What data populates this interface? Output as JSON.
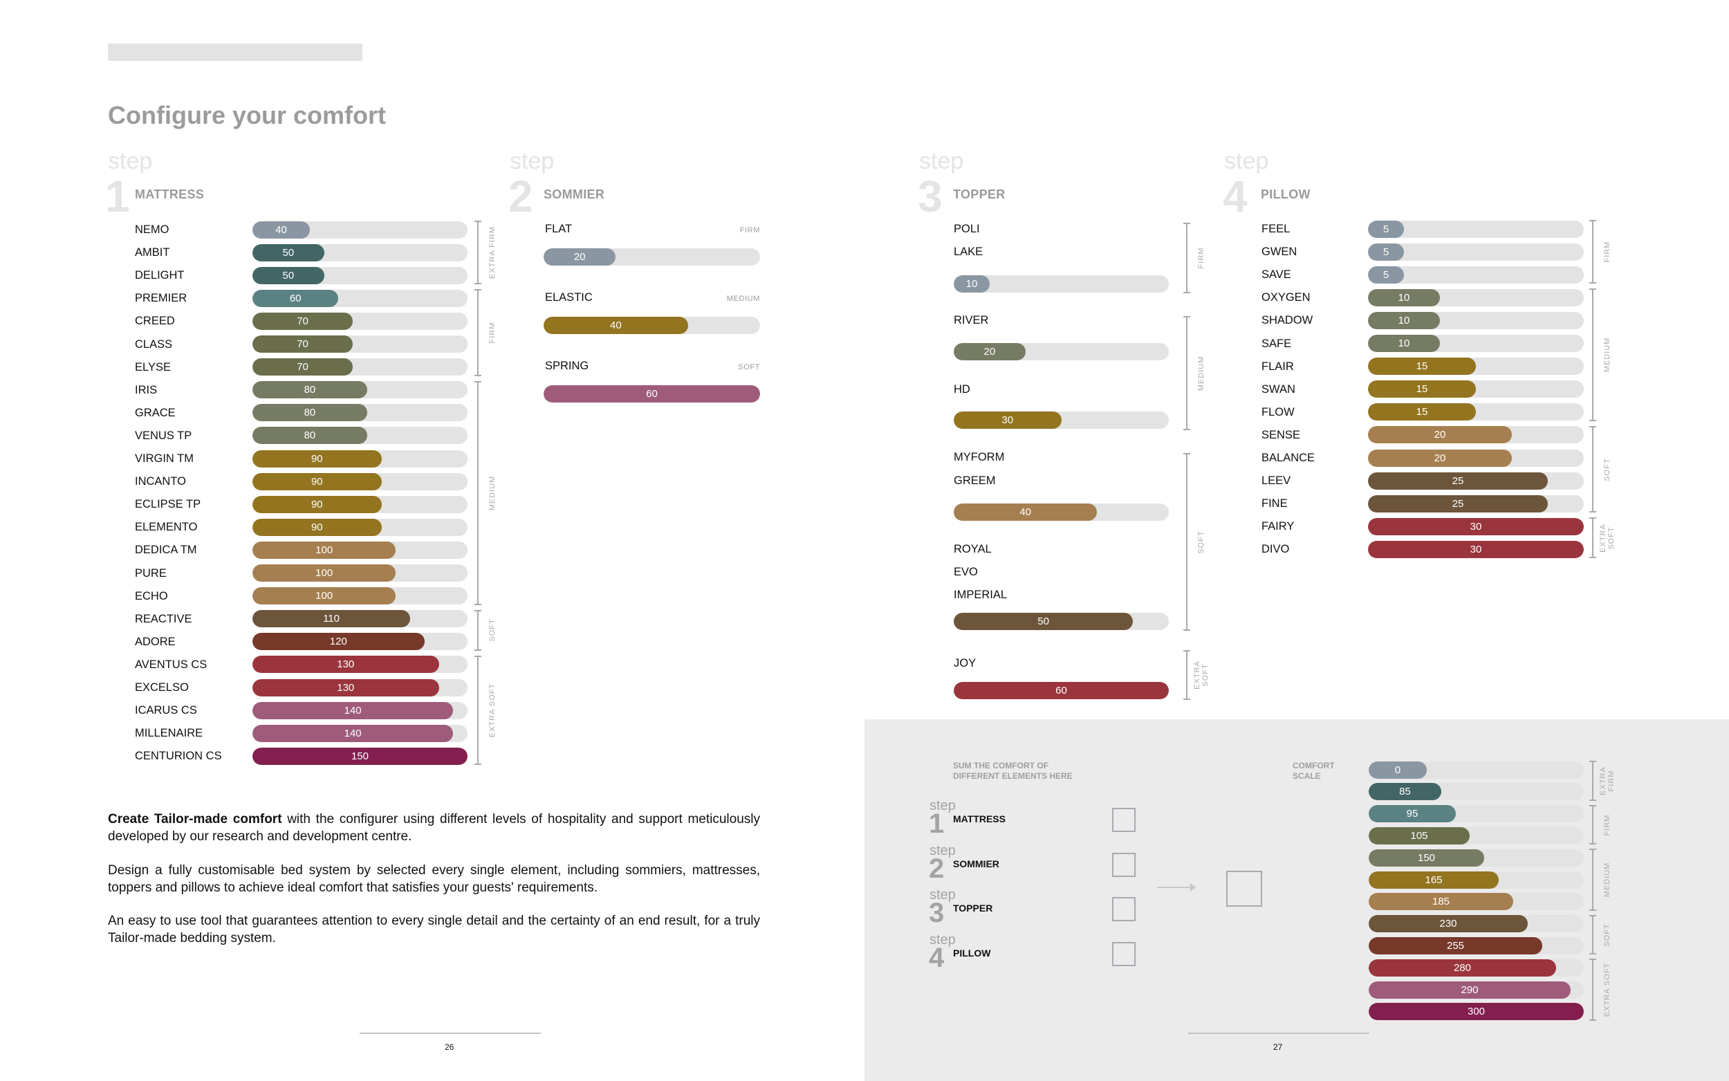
{
  "page": {
    "title": "Configure your comfort",
    "step_word": "step"
  },
  "colors": {
    "c_grey": "#8a96a1",
    "c_teal_dark": "#436566",
    "c_teal": "#5b8283",
    "c_olive_dark": "#6a6e4b",
    "c_olive": "#767c64",
    "c_mustard": "#93741f",
    "c_tan": "#a67f50",
    "c_brown": "#6c553b",
    "c_rust": "#77392a",
    "c_red": "#9b353d",
    "c_mauve": "#9e5c7a",
    "c_plum": "#821f4f",
    "track": "#e3e3e3",
    "panel": "#ebebeb"
  },
  "mattress": {
    "number": "1",
    "label": "MATTRESS",
    "max": 150,
    "rows": [
      {
        "name": "NEMO",
        "value": 40,
        "color": "#8a96a1"
      },
      {
        "name": "AMBIT",
        "value": 50,
        "color": "#436566"
      },
      {
        "name": "DELIGHT",
        "value": 50,
        "color": "#436566"
      },
      {
        "name": "PREMIER",
        "value": 60,
        "color": "#5b8283"
      },
      {
        "name": "CREED",
        "value": 70,
        "color": "#6a6e4b"
      },
      {
        "name": "CLASS",
        "value": 70,
        "color": "#6a6e4b"
      },
      {
        "name": "ELYSE",
        "value": 70,
        "color": "#6a6e4b"
      },
      {
        "name": "IRIS",
        "value": 80,
        "color": "#767c64"
      },
      {
        "name": "GRACE",
        "value": 80,
        "color": "#767c64"
      },
      {
        "name": "VENUS TP",
        "value": 80,
        "color": "#767c64"
      },
      {
        "name": "VIRGIN TM",
        "value": 90,
        "color": "#93741f"
      },
      {
        "name": "INCANTO",
        "value": 90,
        "color": "#93741f"
      },
      {
        "name": "ECLIPSE TP",
        "value": 90,
        "color": "#93741f"
      },
      {
        "name": "ELEMENTO",
        "value": 90,
        "color": "#93741f"
      },
      {
        "name": "DEDICA TM",
        "value": 100,
        "color": "#a67f50"
      },
      {
        "name": "PURE",
        "value": 100,
        "color": "#a67f50"
      },
      {
        "name": "ECHO",
        "value": 100,
        "color": "#a67f50"
      },
      {
        "name": "REACTIVE",
        "value": 110,
        "color": "#6c553b"
      },
      {
        "name": "ADORE",
        "value": 120,
        "color": "#77392a"
      },
      {
        "name": "AVENTUS CS",
        "value": 130,
        "color": "#9b353d"
      },
      {
        "name": "EXCELSO",
        "value": 130,
        "color": "#9b353d"
      },
      {
        "name": "ICARUS CS",
        "value": 140,
        "color": "#9e5c7a"
      },
      {
        "name": "MILLENAIRE",
        "value": 140,
        "color": "#9e5c7a"
      },
      {
        "name": "CENTURION CS",
        "value": 150,
        "color": "#821f4f"
      }
    ],
    "groups": [
      {
        "label": "EXTRA FIRM",
        "from": 0,
        "to": 2
      },
      {
        "label": "FIRM",
        "from": 3,
        "to": 6
      },
      {
        "label": "MEDIUM",
        "from": 7,
        "to": 16
      },
      {
        "label": "SOFT",
        "from": 17,
        "to": 18
      },
      {
        "label": "EXTRA SOFT",
        "from": 19,
        "to": 23
      }
    ]
  },
  "sommier": {
    "number": "2",
    "label": "SOMMIER",
    "max": 60,
    "rows": [
      {
        "name": "FLAT",
        "level": "FIRM",
        "value": 20,
        "color": "#8a96a1"
      },
      {
        "name": "ELASTIC",
        "level": "MEDIUM",
        "value": 40,
        "color": "#93741f"
      },
      {
        "name": "SPRING",
        "level": "SOFT",
        "value": 60,
        "color": "#9e5c7a"
      }
    ]
  },
  "topper": {
    "number": "3",
    "label": "TOPPER",
    "max": 60,
    "groups": [
      {
        "names": [
          "POLI",
          "LAKE"
        ],
        "value": 10,
        "color": "#8a96a1"
      },
      {
        "names": [
          "RIVER"
        ],
        "value": 20,
        "color": "#767c64"
      },
      {
        "names": [
          "HD"
        ],
        "value": 30,
        "color": "#93741f"
      },
      {
        "names": [
          "MYFORM",
          "GREEM"
        ],
        "value": 40,
        "color": "#a67f50"
      },
      {
        "names": [
          "ROYAL",
          "EVO",
          "IMPERIAL"
        ],
        "value": 50,
        "color": "#6c553b"
      },
      {
        "names": [
          "JOY"
        ],
        "value": 60,
        "color": "#9b353d"
      }
    ],
    "levels": [
      "FIRM",
      "MEDIUM",
      "SOFT",
      "EXTRA SOFT"
    ]
  },
  "pillow": {
    "number": "4",
    "label": "PILLOW",
    "max": 30,
    "rows": [
      {
        "name": "FEEL",
        "value": 5,
        "color": "#8a96a1"
      },
      {
        "name": "GWEN",
        "value": 5,
        "color": "#8a96a1"
      },
      {
        "name": "SAVE",
        "value": 5,
        "color": "#8a96a1"
      },
      {
        "name": "OXYGEN",
        "value": 10,
        "color": "#767c64"
      },
      {
        "name": "SHADOW",
        "value": 10,
        "color": "#767c64"
      },
      {
        "name": "SAFE",
        "value": 10,
        "color": "#767c64"
      },
      {
        "name": "FLAIR",
        "value": 15,
        "color": "#93741f"
      },
      {
        "name": "SWAN",
        "value": 15,
        "color": "#93741f"
      },
      {
        "name": "FLOW",
        "value": 15,
        "color": "#93741f"
      },
      {
        "name": "SENSE",
        "value": 20,
        "color": "#a67f50"
      },
      {
        "name": "BALANCE",
        "value": 20,
        "color": "#a67f50"
      },
      {
        "name": "LEEV",
        "value": 25,
        "color": "#6c553b"
      },
      {
        "name": "FINE",
        "value": 25,
        "color": "#6c553b"
      },
      {
        "name": "FAIRY",
        "value": 30,
        "color": "#9b353d"
      },
      {
        "name": "DIVO",
        "value": 30,
        "color": "#9b353d"
      }
    ],
    "groups": [
      {
        "label": "FIRM",
        "from": 0,
        "to": 2
      },
      {
        "label": "MEDIUM",
        "from": 3,
        "to": 8
      },
      {
        "label": "SOFT",
        "from": 9,
        "to": 12
      },
      {
        "label": "EXTRA SOFT",
        "from": 13,
        "to": 14
      }
    ]
  },
  "calculator": {
    "sum_caption": "SUM THE COMFORT OF\nDIFFERENT ELEMENTS HERE",
    "scale_caption": "COMFORT\nSCALE",
    "steps": [
      {
        "number": "1",
        "label": "MATTRESS"
      },
      {
        "number": "2",
        "label": "SOMMIER"
      },
      {
        "number": "3",
        "label": "TOPPER"
      },
      {
        "number": "4",
        "label": "PILLOW"
      }
    ]
  },
  "comfort_scale": {
    "max": 300,
    "rows": [
      {
        "value": 0,
        "color": "#8a96a1"
      },
      {
        "value": 85,
        "color": "#436566"
      },
      {
        "value": 95,
        "color": "#5b8283"
      },
      {
        "value": 105,
        "color": "#6a6e4b"
      },
      {
        "value": 150,
        "color": "#767c64"
      },
      {
        "value": 165,
        "color": "#93741f"
      },
      {
        "value": 185,
        "color": "#a67f50"
      },
      {
        "value": 230,
        "color": "#6c553b"
      },
      {
        "value": 255,
        "color": "#77392a"
      },
      {
        "value": 280,
        "color": "#9b353d"
      },
      {
        "value": 290,
        "color": "#9e5c7a"
      },
      {
        "value": 300,
        "color": "#821f4f"
      }
    ],
    "groups": [
      {
        "label": "EXTRA FIRM",
        "from": 0,
        "to": 1
      },
      {
        "label": "FIRM",
        "from": 2,
        "to": 3
      },
      {
        "label": "MEDIUM",
        "from": 4,
        "to": 6
      },
      {
        "label": "SOFT",
        "from": 7,
        "to": 8
      },
      {
        "label": "EXTRA SOFT",
        "from": 9,
        "to": 11
      }
    ]
  },
  "text": {
    "p1_bold": "Create Tailor-made comfort",
    "p1_rest": " with the configurer using different levels of hospitality and support meticulously developed by our research and development centre.",
    "p2": "Design a fully customisable bed system by selected every single element, including sommiers, mattresses, toppers and pillows to achieve ideal comfort that satisfies your guests' requirements.",
    "p3": "An easy to use tool that guarantees attention to every single detail and the certainty of an end result, for a truly Tailor-made bedding system."
  },
  "footer": {
    "left_page": "26",
    "right_page": "27"
  }
}
